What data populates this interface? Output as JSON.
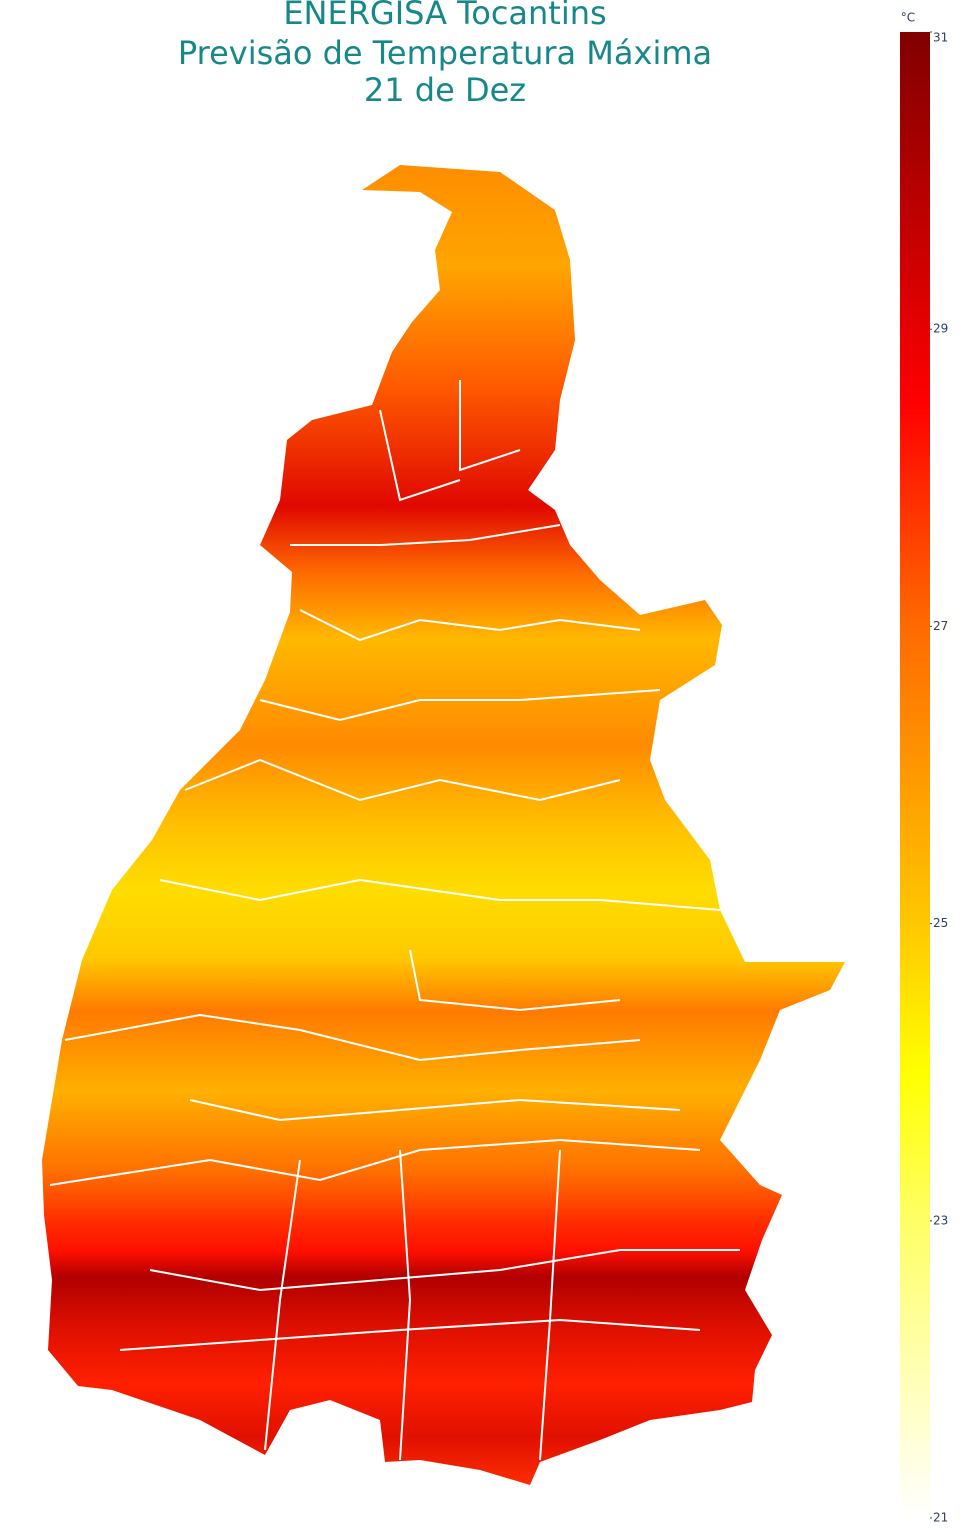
{
  "title": [
    "ENERGISA Tocantins",
    "Previsão de Temperatura Máxima",
    "21 de Dez"
  ],
  "colorbar": {
    "title": "°C",
    "range": [
      21,
      31
    ],
    "ticks": [
      21,
      23,
      25,
      27,
      29,
      31
    ],
    "colorscale": [
      [
        21,
        "#ffffff"
      ],
      [
        23,
        "#ffff66"
      ],
      [
        24,
        "#ffff00"
      ],
      [
        25,
        "#ffc800"
      ],
      [
        27,
        "#ff6a00"
      ],
      [
        28.5,
        "#ff0000"
      ],
      [
        29.5,
        "#cc0000"
      ],
      [
        31,
        "#800000"
      ]
    ]
  }
}
